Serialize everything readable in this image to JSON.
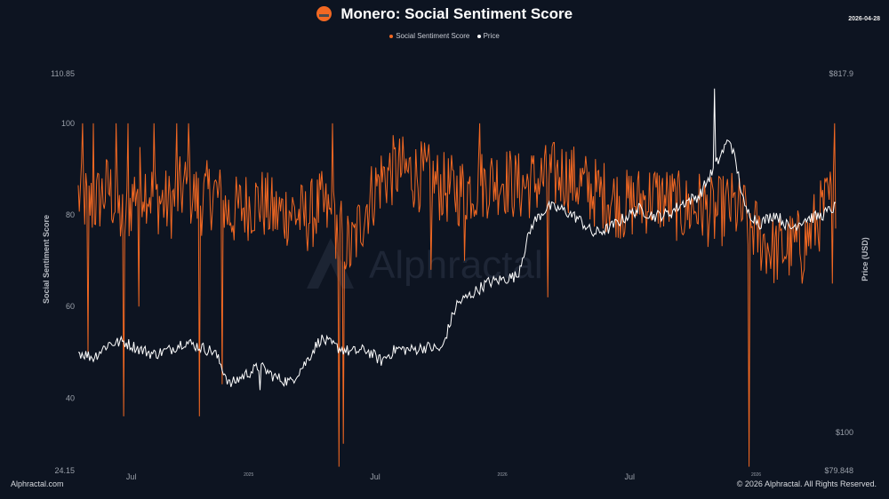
{
  "header": {
    "title": "Monero: Social Sentiment Score",
    "date": "2026-04-28"
  },
  "footer": {
    "left": "Alphractal.com",
    "right": "© 2026 Alphractal. All Rights Reserved."
  },
  "watermark": "Alphractal",
  "colors": {
    "background": "#0d1421",
    "sentiment": "#f26822",
    "price": "#ffffff",
    "logo": "#f26822"
  },
  "chart_data": {
    "type": "line",
    "grid": false,
    "legend_position": "top-center",
    "y_left": {
      "label": "Social Sentiment Score",
      "range": [
        24.15,
        110.85
      ],
      "ticks": [
        "110.85",
        "100",
        "80",
        "60",
        "40",
        "24.15"
      ]
    },
    "y_right": {
      "label": "Price (USD)",
      "scale": "log",
      "range": [
        79.848,
        817.9
      ],
      "ticks": [
        "$817.9",
        "$100",
        "$79.848"
      ]
    },
    "x_ticks": [
      {
        "label": "Jul",
        "t": 0.07
      },
      {
        "label": "2025",
        "t": 0.225
      },
      {
        "label": "Jul",
        "t": 0.392
      },
      {
        "label": "2026",
        "t": 0.56
      },
      {
        "label": "Jul",
        "t": 0.728
      },
      {
        "label": "2026",
        "t": 0.895
      }
    ],
    "series": [
      {
        "name": "Social Sentiment Score",
        "axis": "left",
        "t": [
          0.0,
          0.02,
          0.04,
          0.06,
          0.08,
          0.1,
          0.12,
          0.14,
          0.16,
          0.18,
          0.2,
          0.22,
          0.24,
          0.26,
          0.28,
          0.3,
          0.32,
          0.34,
          0.36,
          0.38,
          0.4,
          0.42,
          0.44,
          0.46,
          0.48,
          0.5,
          0.52,
          0.54,
          0.56,
          0.58,
          0.6,
          0.62,
          0.64,
          0.66,
          0.68,
          0.7,
          0.72,
          0.74,
          0.76,
          0.78,
          0.8,
          0.82,
          0.84,
          0.86,
          0.88,
          0.9,
          0.92,
          0.94,
          0.96,
          0.98,
          1.0
        ],
        "values": [
          84,
          82,
          86,
          78,
          88,
          84,
          82,
          86,
          83,
          85,
          80,
          82,
          83,
          80,
          81,
          79,
          82,
          78,
          72,
          82,
          88,
          90,
          89,
          88,
          86,
          85,
          86,
          87,
          88,
          86,
          87,
          88,
          89,
          87,
          85,
          84,
          82,
          83,
          84,
          83,
          81,
          82,
          80,
          82,
          80,
          75,
          72,
          73,
          74,
          80,
          85
        ],
        "spikes": [
          {
            "t": 0.013,
            "v": 50
          },
          {
            "t": 0.06,
            "v": 36
          },
          {
            "t": 0.08,
            "v": 60
          },
          {
            "t": 0.16,
            "v": 36
          },
          {
            "t": 0.19,
            "v": 43
          },
          {
            "t": 0.345,
            "v": 25
          },
          {
            "t": 0.35,
            "v": 30
          },
          {
            "t": 0.465,
            "v": 68
          },
          {
            "t": 0.51,
            "v": 70
          },
          {
            "t": 0.62,
            "v": 62
          },
          {
            "t": 0.885,
            "v": 25
          },
          {
            "t": 0.955,
            "v": 65
          },
          {
            "t": 0.995,
            "v": 65
          }
        ],
        "peaks": [
          {
            "t": 0.005,
            "v": 100
          },
          {
            "t": 0.02,
            "v": 100
          },
          {
            "t": 0.05,
            "v": 100
          },
          {
            "t": 0.065,
            "v": 100
          },
          {
            "t": 0.1,
            "v": 100
          },
          {
            "t": 0.13,
            "v": 100
          },
          {
            "t": 0.145,
            "v": 100
          },
          {
            "t": 0.335,
            "v": 100
          },
          {
            "t": 0.345,
            "v": 100
          },
          {
            "t": 0.53,
            "v": 100
          },
          {
            "t": 0.998,
            "v": 100
          }
        ]
      },
      {
        "name": "Price",
        "axis": "right",
        "t": [
          0.0,
          0.02,
          0.04,
          0.06,
          0.08,
          0.1,
          0.12,
          0.14,
          0.16,
          0.18,
          0.2,
          0.22,
          0.24,
          0.26,
          0.28,
          0.3,
          0.32,
          0.34,
          0.36,
          0.38,
          0.4,
          0.42,
          0.44,
          0.46,
          0.48,
          0.5,
          0.52,
          0.54,
          0.56,
          0.58,
          0.6,
          0.62,
          0.64,
          0.66,
          0.68,
          0.7,
          0.72,
          0.74,
          0.76,
          0.78,
          0.8,
          0.82,
          0.84,
          0.86,
          0.88,
          0.9,
          0.92,
          0.94,
          0.96,
          0.98,
          1.0
        ],
        "values": [
          160,
          155,
          168,
          170,
          163,
          158,
          162,
          170,
          165,
          160,
          132,
          140,
          147,
          138,
          134,
          150,
          173,
          165,
          160,
          162,
          152,
          163,
          162,
          165,
          162,
          212,
          225,
          240,
          245,
          250,
          340,
          375,
          368,
          350,
          320,
          330,
          350,
          370,
          355,
          360,
          385,
          400,
          470,
          560,
          370,
          340,
          360,
          330,
          350,
          355,
          375
        ],
        "dips": [
          {
            "t": 0.24,
            "v": 128
          },
          {
            "t": 0.84,
            "v": 750
          }
        ]
      }
    ]
  }
}
